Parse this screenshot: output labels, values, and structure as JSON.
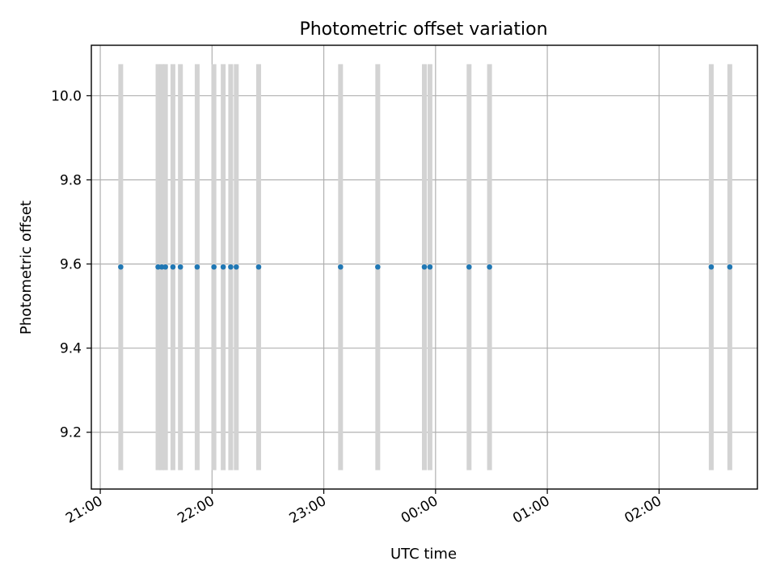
{
  "chart_data": {
    "type": "scatter",
    "title": "Photometric offset variation",
    "xlabel": "UTC time",
    "ylabel": "Photometric offset",
    "x_unit": "UTC hours (values >= 24 fall after midnight)",
    "xlim": [
      20.92,
      26.88
    ],
    "ylim": [
      9.065,
      10.12
    ],
    "yticks": [
      9.2,
      9.4,
      9.6,
      9.8,
      10.0
    ],
    "ytick_labels": [
      "9.2",
      "9.4",
      "9.6",
      "9.8",
      "10.0"
    ],
    "xticks": [
      21,
      22,
      23,
      24,
      25,
      26
    ],
    "xtick_labels": [
      "21:00",
      "22:00",
      "23:00",
      "00:00",
      "01:00",
      "02:00"
    ],
    "grid": true,
    "colors": {
      "points": "#1f77b4",
      "bands": "#d3d3d3",
      "grid": "#b0b0b0"
    },
    "band_yrange": [
      9.11,
      10.075
    ],
    "points": [
      {
        "x": 21.183,
        "y": 9.593
      },
      {
        "x": 21.517,
        "y": 9.593
      },
      {
        "x": 21.55,
        "y": 9.593
      },
      {
        "x": 21.583,
        "y": 9.593
      },
      {
        "x": 21.65,
        "y": 9.593
      },
      {
        "x": 21.717,
        "y": 9.593
      },
      {
        "x": 21.867,
        "y": 9.593
      },
      {
        "x": 22.017,
        "y": 9.593
      },
      {
        "x": 22.1,
        "y": 9.593
      },
      {
        "x": 22.167,
        "y": 9.593
      },
      {
        "x": 22.217,
        "y": 9.593
      },
      {
        "x": 22.417,
        "y": 9.593
      },
      {
        "x": 23.15,
        "y": 9.593
      },
      {
        "x": 23.483,
        "y": 9.593
      },
      {
        "x": 23.9,
        "y": 9.593
      },
      {
        "x": 23.95,
        "y": 9.593
      },
      {
        "x": 24.3,
        "y": 9.593
      },
      {
        "x": 24.483,
        "y": 9.593
      },
      {
        "x": 26.467,
        "y": 9.593
      },
      {
        "x": 26.633,
        "y": 9.593
      }
    ]
  }
}
